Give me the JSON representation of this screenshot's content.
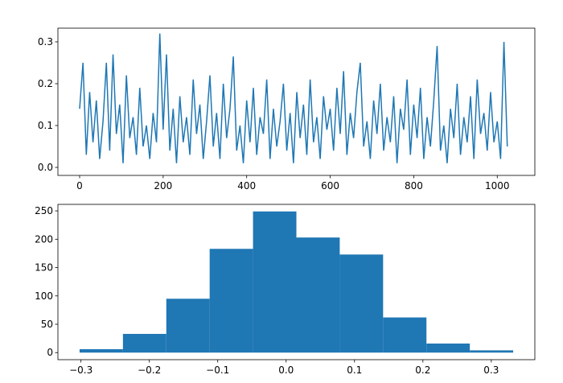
{
  "chart_data": [
    {
      "type": "line",
      "x": [
        0,
        8,
        16,
        24,
        32,
        40,
        48,
        56,
        64,
        72,
        80,
        88,
        96,
        104,
        112,
        120,
        128,
        136,
        144,
        152,
        160,
        168,
        176,
        184,
        192,
        200,
        208,
        216,
        224,
        232,
        240,
        248,
        256,
        264,
        272,
        280,
        288,
        296,
        304,
        312,
        320,
        328,
        336,
        344,
        352,
        360,
        368,
        376,
        384,
        392,
        400,
        408,
        416,
        424,
        432,
        440,
        448,
        456,
        464,
        472,
        480,
        488,
        496,
        504,
        512,
        520,
        528,
        536,
        544,
        552,
        560,
        568,
        576,
        584,
        592,
        600,
        608,
        616,
        624,
        632,
        640,
        648,
        656,
        664,
        672,
        680,
        688,
        696,
        704,
        712,
        720,
        728,
        736,
        744,
        752,
        760,
        768,
        776,
        784,
        792,
        800,
        808,
        816,
        824,
        832,
        840,
        848,
        856,
        864,
        872,
        880,
        888,
        896,
        904,
        912,
        920,
        928,
        936,
        944,
        952,
        960,
        968,
        976,
        984,
        992,
        1000,
        1008,
        1016,
        1024
      ],
      "series": [
        {
          "color": "#1f77b4",
          "values": [
            0.14,
            0.25,
            0.03,
            0.18,
            0.06,
            0.16,
            0.02,
            0.11,
            0.25,
            0.04,
            0.27,
            0.08,
            0.15,
            0.01,
            0.22,
            0.07,
            0.12,
            0.03,
            0.19,
            0.05,
            0.1,
            0.02,
            0.13,
            0.06,
            0.32,
            0.09,
            0.27,
            0.04,
            0.14,
            0.01,
            0.17,
            0.06,
            0.12,
            0.03,
            0.21,
            0.08,
            0.15,
            0.02,
            0.11,
            0.22,
            0.05,
            0.13,
            0.02,
            0.2,
            0.07,
            0.14,
            0.265,
            0.04,
            0.1,
            0.01,
            0.16,
            0.06,
            0.19,
            0.03,
            0.12,
            0.08,
            0.21,
            0.02,
            0.14,
            0.05,
            0.11,
            0.2,
            0.04,
            0.13,
            0.01,
            0.18,
            0.07,
            0.15,
            0.03,
            0.21,
            0.06,
            0.12,
            0.02,
            0.17,
            0.09,
            0.14,
            0.04,
            0.19,
            0.08,
            0.23,
            0.03,
            0.13,
            0.07,
            0.18,
            0.25,
            0.05,
            0.11,
            0.02,
            0.16,
            0.08,
            0.2,
            0.04,
            0.12,
            0.06,
            0.17,
            0.01,
            0.14,
            0.09,
            0.21,
            0.03,
            0.15,
            0.07,
            0.19,
            0.02,
            0.12,
            0.05,
            0.16,
            0.29,
            0.04,
            0.1,
            0.01,
            0.14,
            0.07,
            0.2,
            0.03,
            0.12,
            0.06,
            0.17,
            0.02,
            0.21,
            0.08,
            0.13,
            0.04,
            0.18,
            0.06,
            0.11,
            0.02,
            0.3,
            0.05
          ]
        }
      ],
      "xlim": [
        -52,
        1090
      ],
      "xticks": [
        0,
        200,
        400,
        600,
        800,
        1000
      ],
      "ylim": [
        -0.0192,
        0.3327
      ],
      "yticks": [
        {
          "value": 0,
          "label": "0.0"
        },
        {
          "value": 0.1,
          "label": "0.1"
        },
        {
          "value": 0.2,
          "label": "0.2"
        },
        {
          "value": 0.3,
          "label": "0.3"
        }
      ]
    },
    {
      "type": "histogram",
      "bins": [
        -0.302,
        -0.2386,
        -0.1752,
        -0.1118,
        -0.0484,
        0.015,
        0.0784,
        0.1418,
        0.2052,
        0.2686,
        0.332
      ],
      "values": [
        6,
        33,
        95,
        183,
        249,
        203,
        173,
        62,
        16,
        4
      ],
      "color": "#1f77b4",
      "xlim": [
        -0.3337,
        0.3637
      ],
      "xticks": [
        {
          "value": -0.3,
          "label": "−0.3"
        },
        {
          "value": -0.2,
          "label": "−0.2"
        },
        {
          "value": -0.1,
          "label": "−0.1"
        },
        {
          "value": 0,
          "label": "0.0"
        },
        {
          "value": 0.1,
          "label": "0.1"
        },
        {
          "value": 0.2,
          "label": "0.2"
        },
        {
          "value": 0.3,
          "label": "0.3"
        }
      ],
      "ylim": [
        -12.45,
        261.45
      ],
      "yticks": [
        0,
        50,
        100,
        150,
        200,
        250
      ]
    }
  ]
}
